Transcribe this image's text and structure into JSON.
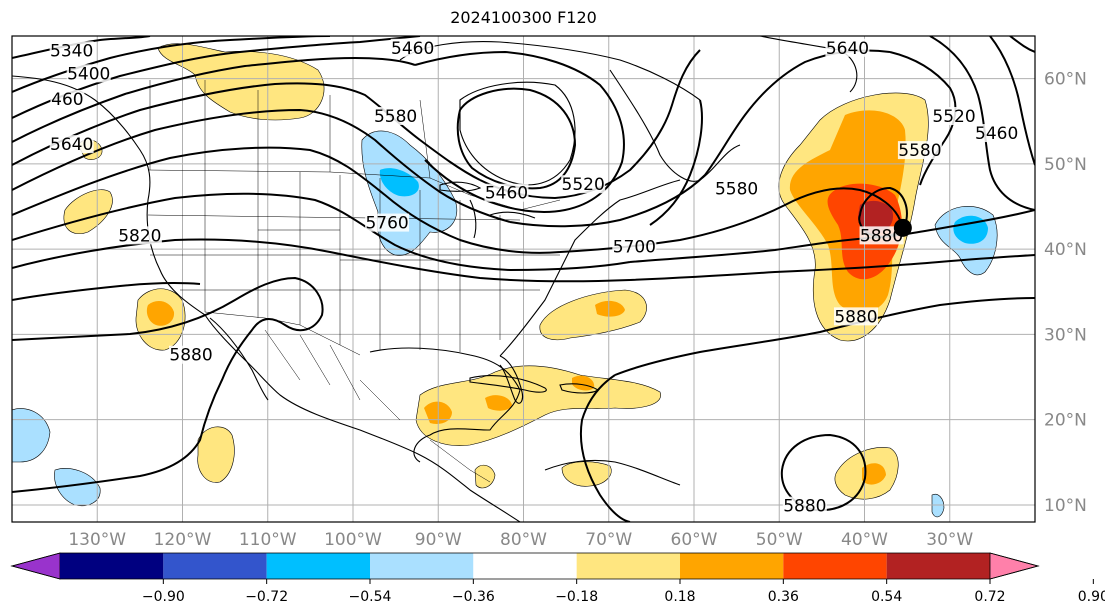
{
  "title": "2024100300 F120",
  "map": {
    "lon_range": [
      -140,
      -20
    ],
    "lat_range": [
      8,
      65
    ],
    "lon_ticks": [
      {
        "lon": -130,
        "label": "130°W"
      },
      {
        "lon": -120,
        "label": "120°W"
      },
      {
        "lon": -110,
        "label": "110°W"
      },
      {
        "lon": -100,
        "label": "100°W"
      },
      {
        "lon": -90,
        "label": "90°W"
      },
      {
        "lon": -80,
        "label": "80°W"
      },
      {
        "lon": -70,
        "label": "70°W"
      },
      {
        "lon": -60,
        "label": "60°W"
      },
      {
        "lon": -50,
        "label": "50°W"
      },
      {
        "lon": -40,
        "label": "40°W"
      },
      {
        "lon": -30,
        "label": "30°W"
      }
    ],
    "lat_ticks": [
      {
        "lat": 60,
        "label": "60°N"
      },
      {
        "lat": 50,
        "label": "50°N"
      },
      {
        "lat": 40,
        "label": "40°N"
      },
      {
        "lat": 30,
        "label": "30°N"
      },
      {
        "lat": 20,
        "label": "20°N"
      },
      {
        "lat": 10,
        "label": "10°N"
      }
    ],
    "grid": true,
    "contour_labels": [
      {
        "text": "5340",
        "lon": -133,
        "lat": 63.2
      },
      {
        "text": "5400",
        "lon": -131,
        "lat": 60.5
      },
      {
        "text": "460",
        "lon": -133.5,
        "lat": 57.5
      },
      {
        "text": "5640",
        "lon": -133,
        "lat": 52.2
      },
      {
        "text": "5820",
        "lon": -125,
        "lat": 41.5
      },
      {
        "text": "5460",
        "lon": -93,
        "lat": 63.5
      },
      {
        "text": "5580",
        "lon": -95,
        "lat": 55.5
      },
      {
        "text": "5460",
        "lon": -82,
        "lat": 46.5
      },
      {
        "text": "5520",
        "lon": -73,
        "lat": 47.5
      },
      {
        "text": "5760",
        "lon": -96,
        "lat": 43
      },
      {
        "text": "5700",
        "lon": -67,
        "lat": 40.2
      },
      {
        "text": "5880",
        "lon": -119,
        "lat": 27.5
      },
      {
        "text": "5640",
        "lon": -42,
        "lat": 63.5
      },
      {
        "text": "5580",
        "lon": -55,
        "lat": 47
      },
      {
        "text": "5520",
        "lon": -29.5,
        "lat": 55.5
      },
      {
        "text": "5460",
        "lon": -24.5,
        "lat": 53.5
      },
      {
        "text": "5580",
        "lon": -33.5,
        "lat": 51.5
      },
      {
        "text": "5880",
        "lon": -38,
        "lat": 41.5
      },
      {
        "text": "5880",
        "lon": -41,
        "lat": 32
      },
      {
        "text": "5880",
        "lon": -47,
        "lat": 9.8
      }
    ],
    "marker": {
      "lon": -35.5,
      "lat": 42.5,
      "color": "#000000"
    }
  },
  "colorbar": {
    "colors": [
      "#9933cc",
      "#000080",
      "#3355cc",
      "#00bfff",
      "#aae0ff",
      "#ffffff",
      "#ffe680",
      "#ffa500",
      "#ff4500",
      "#b22222",
      "#ff80aa"
    ],
    "tick_labels": [
      "−0.90",
      "−0.72",
      "−0.54",
      "−0.36",
      "−0.18",
      "0.18",
      "0.36",
      "0.54",
      "0.72",
      "0.90"
    ]
  }
}
